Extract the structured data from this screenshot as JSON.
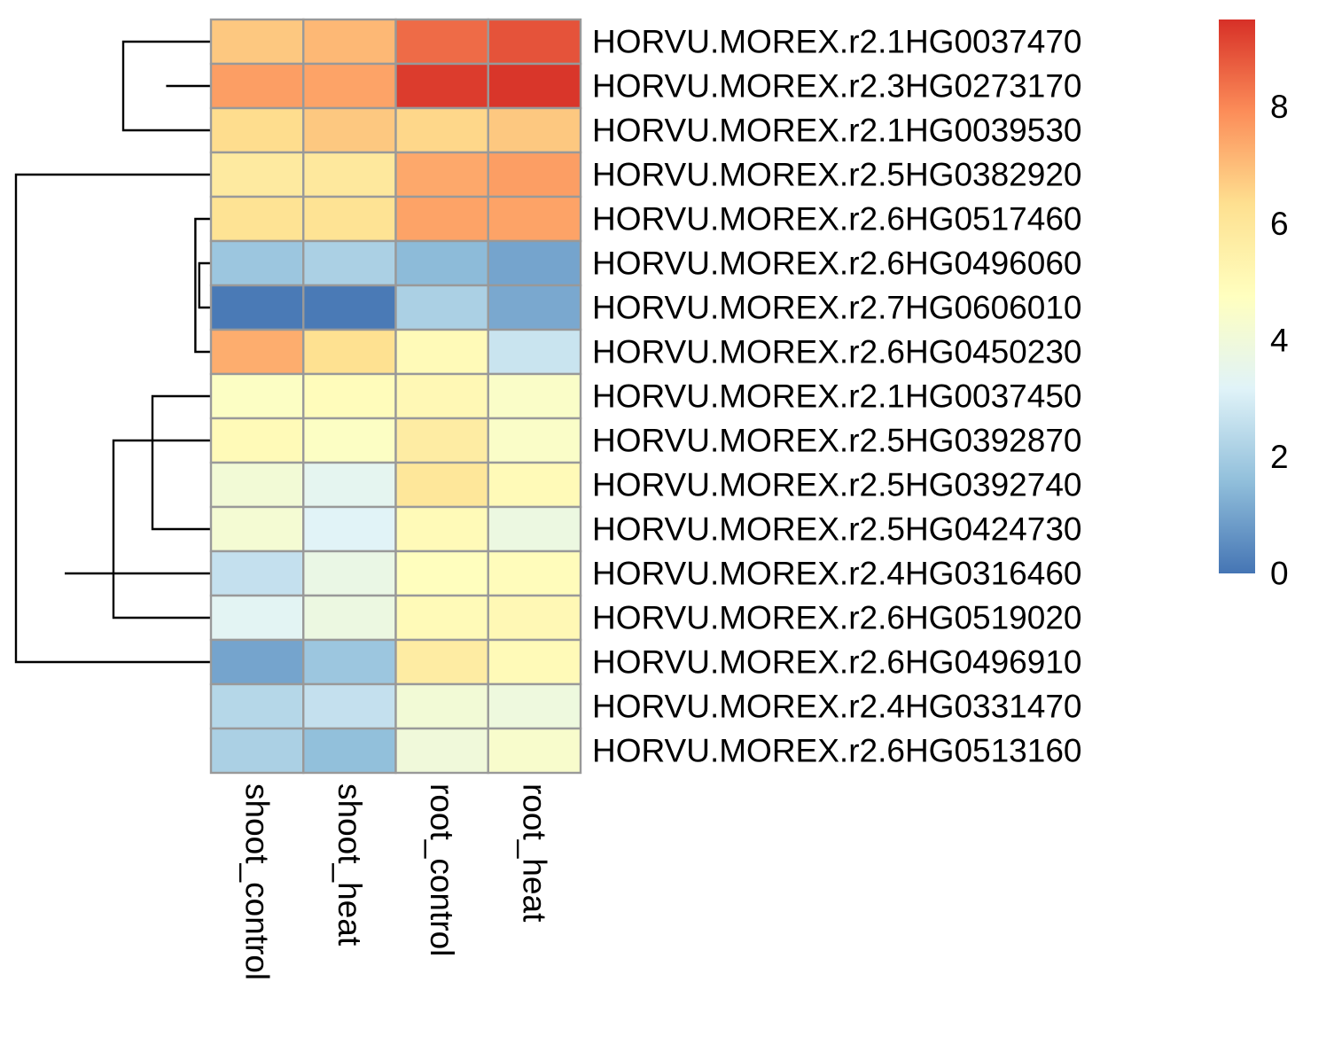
{
  "chart_data": {
    "type": "heatmap",
    "columns": [
      "shoot_control",
      "shoot_heat",
      "root_control",
      "root_heat"
    ],
    "rows": [
      "HORVU.MOREX.r2.1HG0037470",
      "HORVU.MOREX.r2.3HG0273170",
      "HORVU.MOREX.r2.1HG0039530",
      "HORVU.MOREX.r2.5HG0382920",
      "HORVU.MOREX.r2.6HG0517460",
      "HORVU.MOREX.r2.6HG0496060",
      "HORVU.MOREX.r2.7HG0606010",
      "HORVU.MOREX.r2.6HG0450230",
      "HORVU.MOREX.r2.1HG0037450",
      "HORVU.MOREX.r2.5HG0392870",
      "HORVU.MOREX.r2.5HG0392740",
      "HORVU.MOREX.r2.5HG0424730",
      "HORVU.MOREX.r2.4HG0316460",
      "HORVU.MOREX.r2.6HG0519020",
      "HORVU.MOREX.r2.6HG0496910",
      "HORVU.MOREX.r2.4HG0331470",
      "HORVU.MOREX.r2.6HG0513160"
    ],
    "values": [
      [
        6.8,
        7.1,
        8.5,
        8.9
      ],
      [
        7.6,
        7.5,
        9.3,
        9.4
      ],
      [
        6.4,
        6.8,
        6.5,
        6.8
      ],
      [
        5.8,
        5.9,
        7.4,
        7.6
      ],
      [
        6.2,
        6.2,
        7.5,
        7.5
      ],
      [
        1.8,
        2.1,
        1.5,
        1.0
      ],
      [
        0.1,
        0.1,
        2.1,
        1.1
      ],
      [
        7.3,
        6.3,
        5.0,
        2.7
      ],
      [
        4.6,
        4.9,
        5.1,
        4.5
      ],
      [
        5.0,
        4.6,
        5.7,
        4.5
      ],
      [
        4.1,
        3.4,
        6.0,
        5.0
      ],
      [
        4.2,
        3.2,
        5.0,
        3.8
      ],
      [
        2.6,
        3.7,
        4.8,
        4.9
      ],
      [
        3.3,
        3.8,
        5.0,
        5.1
      ],
      [
        1.0,
        1.8,
        5.7,
        5.0
      ],
      [
        2.3,
        2.6,
        4.1,
        3.9
      ],
      [
        2.1,
        1.6,
        4.0,
        4.4
      ]
    ],
    "colorscale": {
      "min": 0,
      "max": 9.5,
      "ticks": [
        0,
        2,
        4,
        6,
        8
      ],
      "tick_labels": [
        "0",
        "2",
        "4",
        "6",
        "8"
      ],
      "colors": [
        "#4575b4",
        "#91bfdb",
        "#e0f3f8",
        "#ffffbf",
        "#fee090",
        "#fc8d59",
        "#d73027"
      ]
    },
    "cell_border_color": "#999999",
    "row_dendrogram": [
      [
        1,
        2,
        0.06
      ],
      [
        4,
        5,
        0.03
      ],
      [
        -2,
        3,
        0.23
      ],
      [
        -1,
        -3,
        0.45
      ],
      [
        6,
        7,
        0.2
      ],
      [
        9,
        10,
        0.02
      ],
      [
        11,
        12,
        0.05
      ],
      [
        13,
        14,
        0.03
      ],
      [
        -6,
        -7,
        0.06
      ],
      [
        -8,
        -5,
        0.08
      ],
      [
        16,
        17,
        0.05
      ],
      [
        15,
        -11,
        0.27
      ],
      [
        -12,
        -9,
        0.3
      ],
      [
        -13,
        8,
        0.75
      ],
      [
        -14,
        -10,
        0.5
      ],
      [
        -4,
        -15,
        1.0
      ]
    ]
  }
}
